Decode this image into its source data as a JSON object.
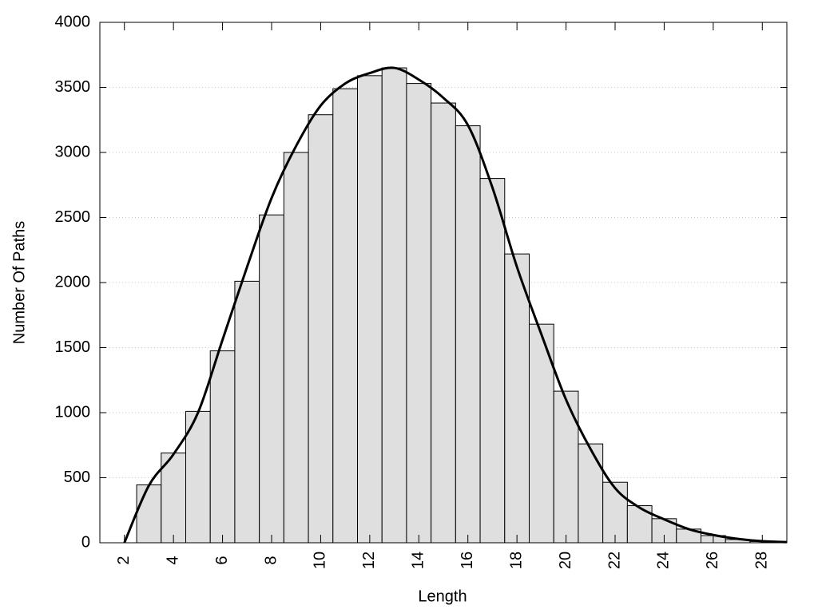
{
  "chart_data": {
    "type": "histogram",
    "xlabel": "Length",
    "ylabel": "Number Of Paths",
    "bins": [
      2.5,
      3.5,
      4.5,
      5.5,
      6.5,
      7.5,
      8.5,
      9.5,
      10.5,
      11.5,
      12.5,
      13.5,
      14.5,
      15.5,
      16.5,
      17.5,
      18.5,
      19.5,
      20.5,
      21.5,
      22.5,
      23.5,
      24.5,
      25.5,
      26.5,
      27.5,
      28.5
    ],
    "values": [
      445,
      690,
      1010,
      1475,
      2010,
      2520,
      3000,
      3290,
      3490,
      3590,
      3650,
      3530,
      3380,
      3205,
      2800,
      2220,
      1680,
      1165,
      760,
      465,
      285,
      185,
      105,
      55,
      25,
      10
    ],
    "color": "#dfdfdf",
    "line": {
      "type": "line",
      "color": "#000000",
      "x": [
        2,
        3,
        4,
        5,
        6,
        7,
        8,
        9,
        10,
        11,
        12,
        13,
        14,
        15,
        16,
        17,
        18,
        19,
        20,
        21,
        22,
        23,
        24,
        25,
        26,
        27,
        28,
        29
      ],
      "values": [
        0,
        440,
        680,
        1000,
        1560,
        2120,
        2650,
        3050,
        3360,
        3530,
        3610,
        3650,
        3560,
        3420,
        3210,
        2730,
        2120,
        1600,
        1100,
        720,
        420,
        270,
        180,
        105,
        60,
        30,
        12,
        5
      ]
    },
    "xlim": [
      1,
      29
    ],
    "xticks": [
      2,
      4,
      6,
      8,
      10,
      12,
      14,
      16,
      18,
      20,
      22,
      24,
      26,
      28
    ],
    "ylim": [
      0,
      4000
    ],
    "yticks": [
      0,
      500,
      1000,
      1500,
      2000,
      2500,
      3000,
      3500,
      4000
    ],
    "grid": true
  }
}
